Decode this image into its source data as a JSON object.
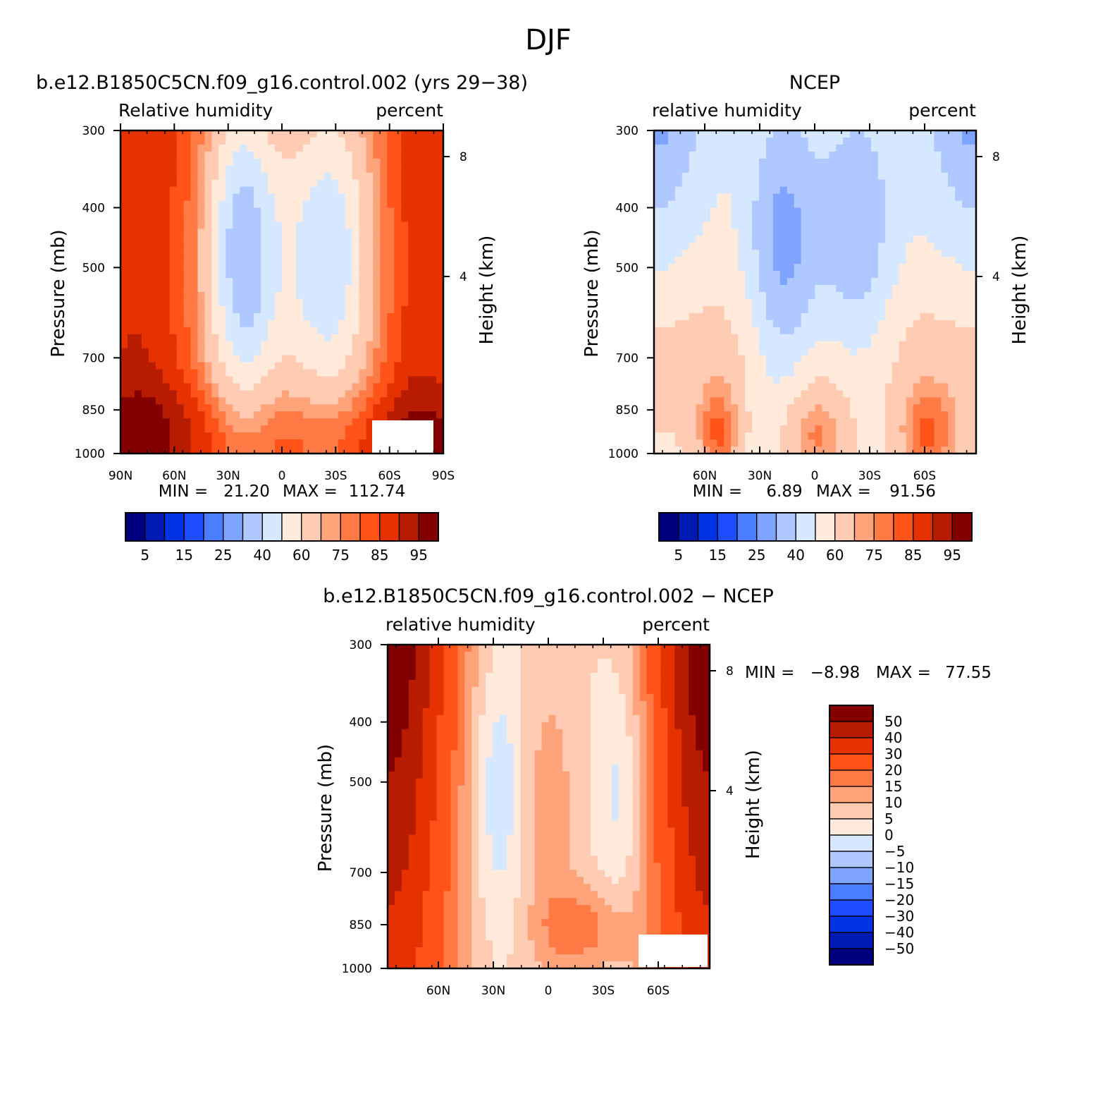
{
  "figure": {
    "title": "DJF"
  },
  "chart_data": [
    {
      "type": "heatmap",
      "title": "b.e12.B1850C5CN.f09_g16.control.002 (yrs 29-38)",
      "left_string": "Relative humidity",
      "right_string": "percent",
      "ylabel": "Pressure (mb)",
      "ylabel_right": "Height (km)",
      "x_ticks": [
        "90N",
        "60N",
        "30N",
        "0",
        "30S",
        "60S",
        "90S"
      ],
      "y_ticks": [
        "300",
        "400",
        "500",
        "700",
        "850",
        "1000"
      ],
      "height_ticks": [
        "8",
        "4"
      ],
      "ylim": [
        1000,
        300
      ],
      "xlim": [
        90,
        -90
      ],
      "y_scale": "log",
      "stats": {
        "min_label": "MIN =",
        "min": "21.20",
        "max_label": "MAX =",
        "max": "112.74"
      },
      "colorbar": {
        "orientation": "horizontal",
        "levels": [
          5,
          10,
          15,
          20,
          25,
          30,
          40,
          50,
          60,
          70,
          75,
          80,
          85,
          90,
          95
        ],
        "labels": [
          "5",
          "15",
          "25",
          "40",
          "60",
          "75",
          "85",
          "95"
        ]
      },
      "grid": false
    },
    {
      "type": "heatmap",
      "title": "NCEP",
      "left_string": "relative humidity",
      "right_string": "percent",
      "ylabel": "Pressure (mb)",
      "ylabel_right": "Height (km)",
      "x_ticks": [
        "60N",
        "30N",
        "0",
        "30S",
        "60S"
      ],
      "y_ticks": [
        "300",
        "400",
        "500",
        "700",
        "850",
        "1000"
      ],
      "height_ticks": [
        "8",
        "4"
      ],
      "ylim": [
        1000,
        300
      ],
      "y_scale": "log",
      "stats": {
        "min_label": "MIN =",
        "min": "6.89",
        "max_label": "MAX =",
        "max": "91.56"
      },
      "colorbar": {
        "orientation": "horizontal",
        "levels": [
          5,
          10,
          15,
          20,
          25,
          30,
          40,
          50,
          60,
          70,
          75,
          80,
          85,
          90,
          95
        ],
        "labels": [
          "5",
          "15",
          "25",
          "40",
          "60",
          "75",
          "85",
          "95"
        ]
      },
      "grid": false
    },
    {
      "type": "heatmap",
      "title": "b.e12.B1850C5CN.f09_g16.control.002 - NCEP",
      "left_string": "relative humidity",
      "right_string": "percent",
      "ylabel": "Pressure (mb)",
      "ylabel_right": "Height (km)",
      "x_ticks": [
        "60N",
        "30N",
        "0",
        "30S",
        "60S"
      ],
      "y_ticks": [
        "300",
        "400",
        "500",
        "700",
        "850",
        "1000"
      ],
      "height_ticks": [
        "8",
        "4"
      ],
      "ylim": [
        1000,
        300
      ],
      "y_scale": "log",
      "stats": {
        "min_label": "MIN =",
        "min": "-8.98",
        "max_label": "MAX =",
        "max": "77.55"
      },
      "colorbar": {
        "orientation": "vertical",
        "levels": [
          -50,
          -40,
          -30,
          -20,
          -15,
          -10,
          -5,
          0,
          5,
          10,
          15,
          20,
          30,
          40,
          50
        ],
        "labels": [
          "50",
          "40",
          "30",
          "20",
          "15",
          "10",
          "5",
          "0",
          "-5",
          "-10",
          "-15",
          "-20",
          "-30",
          "-40",
          "-50"
        ]
      },
      "grid": false
    }
  ],
  "colors": {
    "palette": [
      "#00007f",
      "#0019b2",
      "#0032e5",
      "#1e4cff",
      "#4a7dff",
      "#7ea4ff",
      "#afc8ff",
      "#d6e8ff",
      "#ffeadb",
      "#ffccb3",
      "#ffa37a",
      "#ff7a45",
      "#ff5319",
      "#e53200",
      "#b81c00",
      "#820000"
    ],
    "missing": "#ffffff"
  }
}
